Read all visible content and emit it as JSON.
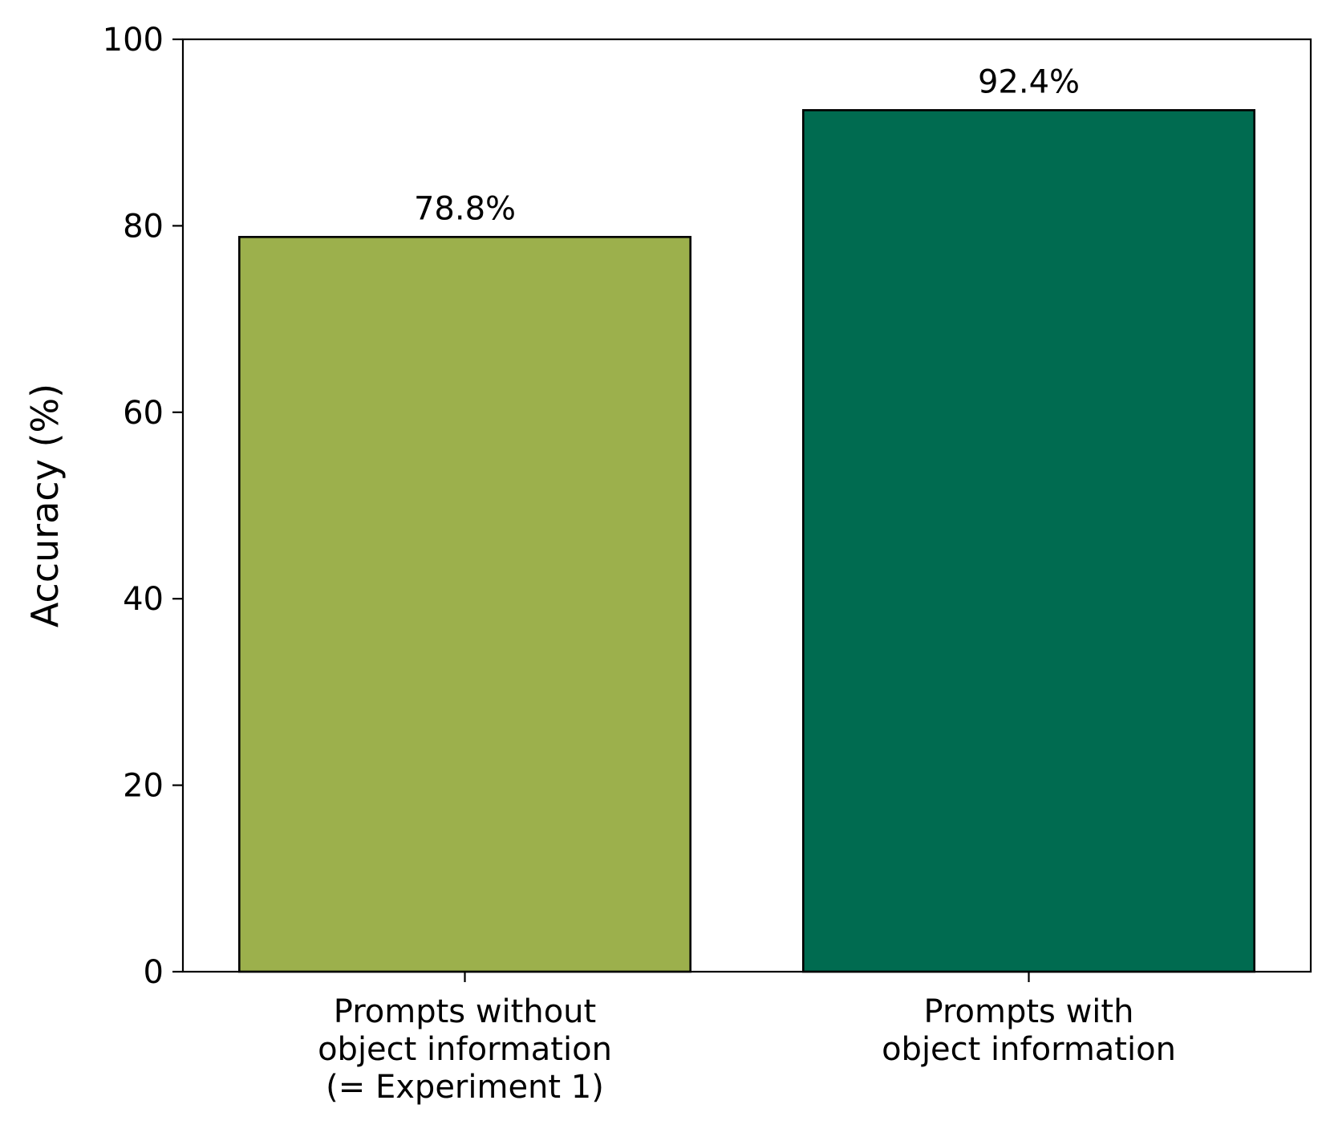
{
  "chart_data": {
    "type": "bar",
    "categories": [
      [
        "Prompts without",
        "object information",
        "(= Experiment 1)"
      ],
      [
        "Prompts with",
        "object information"
      ]
    ],
    "values": [
      78.8,
      92.4
    ],
    "value_labels": [
      "78.8%",
      "92.4%"
    ],
    "colors": [
      "#9cb04c",
      "#006b50"
    ],
    "ylabel": "Accuracy (%)",
    "ylim": [
      0,
      100
    ],
    "yticks": [
      0,
      20,
      40,
      60,
      80,
      100
    ],
    "grid": false,
    "legend": "none"
  }
}
